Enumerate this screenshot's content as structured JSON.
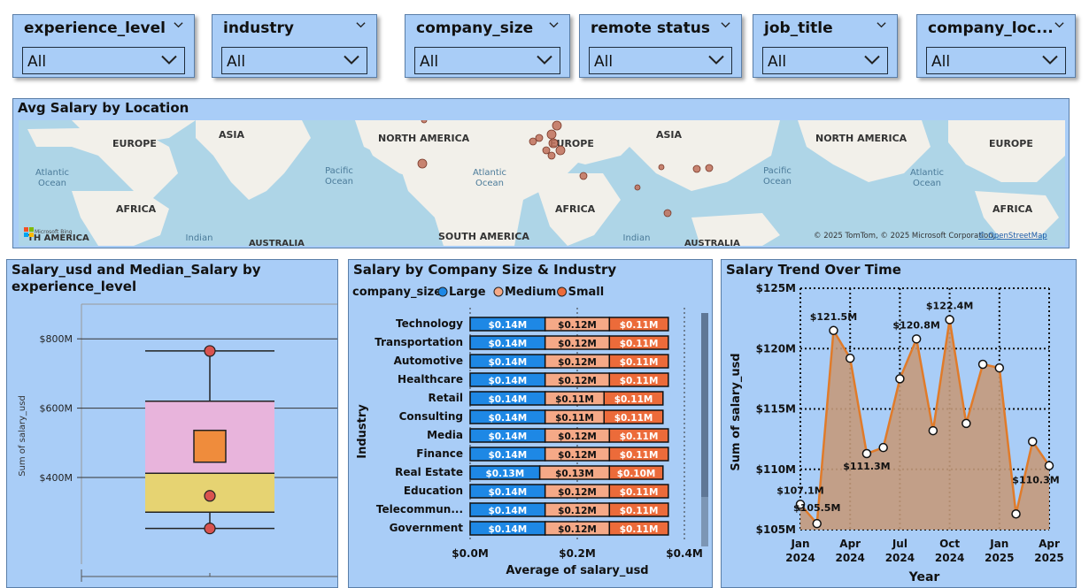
{
  "slicers": [
    {
      "title": "experience_level",
      "value": "All"
    },
    {
      "title": "industry",
      "value": "All"
    },
    {
      "title": "company_size",
      "value": "All"
    },
    {
      "title": "remote status",
      "value": "All"
    },
    {
      "title": "job_title",
      "value": "All"
    },
    {
      "title": "company_loc...",
      "value": "All"
    }
  ],
  "map": {
    "title": "Avg Salary by Location",
    "labels": {
      "europe": "EUROPE",
      "asia": "ASIA",
      "north_america": "NORTH AMERICA",
      "atlantic": "Atlantic",
      "ocean": "Ocean",
      "pacific": "Pacific",
      "africa": "AFRICA",
      "south_america": "SOUTH AMERICA",
      "indian": "Indian",
      "australia": "AUSTRALIA",
      "america_frag": "TH AMERICA"
    },
    "attribution": "© 2025 TomTom, © 2025 Microsoft Corporation,",
    "osm": "© OpenStreetMap",
    "logo": "Microsoft Bing"
  },
  "chart_data": [
    {
      "type": "box",
      "title": "Salary_usd and Median_Salary by experience_level",
      "ylabel": "Sum of salary_usd",
      "ylim": [
        150,
        900
      ],
      "ticks": [
        "$400M",
        "$600M",
        "$800M"
      ],
      "whisker_low": 253,
      "q1": 300,
      "median": 412,
      "q3": 620,
      "whisker_high": 765,
      "points": [
        765,
        347,
        253
      ],
      "mean": 490
    },
    {
      "type": "bar",
      "title": "Salary by Company Size & Industry",
      "legend_title": "company_size",
      "series_names": [
        "Large",
        "Medium",
        "Small"
      ],
      "colors": [
        "#1e88e5",
        "#f5a987",
        "#ec6b3a"
      ],
      "ylabel": "Industry",
      "xlabel": "Average of salary_usd",
      "xticks": [
        "$0.0M",
        "$0.2M",
        "$0.4M"
      ],
      "xlim": [
        0,
        0.4
      ],
      "categories": [
        "Technology",
        "Transportation",
        "Automotive",
        "Healthcare",
        "Retail",
        "Consulting",
        "Media",
        "Finance",
        "Real Estate",
        "Education",
        "Telecommun...",
        "Government"
      ],
      "series": [
        {
          "name": "Large",
          "values": [
            0.14,
            0.14,
            0.14,
            0.14,
            0.14,
            0.14,
            0.14,
            0.14,
            0.13,
            0.14,
            0.14,
            0.14
          ],
          "labels": [
            "$0.14M",
            "$0.14M",
            "$0.14M",
            "$0.14M",
            "$0.14M",
            "$0.14M",
            "$0.14M",
            "$0.14M",
            "$0.13M",
            "$0.14M",
            "$0.14M",
            "$0.14M"
          ]
        },
        {
          "name": "Medium",
          "values": [
            0.12,
            0.12,
            0.12,
            0.12,
            0.11,
            0.11,
            0.12,
            0.12,
            0.13,
            0.12,
            0.12,
            0.12
          ],
          "labels": [
            "$0.12M",
            "$0.12M",
            "$0.12M",
            "$0.12M",
            "$0.11M",
            "$0.11M",
            "$0.12M",
            "$0.12M",
            "$0.13M",
            "$0.12M",
            "$0.12M",
            "$0.12M"
          ]
        },
        {
          "name": "Small",
          "values": [
            0.11,
            0.11,
            0.11,
            0.11,
            0.11,
            0.11,
            0.11,
            0.11,
            0.1,
            0.11,
            0.11,
            0.11
          ],
          "labels": [
            "$0.11M",
            "$0.11M",
            "$0.11M",
            "$0.11M",
            "$0.11M",
            "$0.11M",
            "$0.11M",
            "$0.11M",
            "$0.10M",
            "$0.11M",
            "$0.11M",
            "$0.11M"
          ]
        }
      ]
    },
    {
      "type": "area",
      "title": "Salary Trend Over Time",
      "ylabel": "Sum of salary_usd",
      "xlabel": "Year",
      "ylim": [
        105,
        125
      ],
      "yticks": [
        "$105M",
        "$110M",
        "$115M",
        "$120M",
        "$125M"
      ],
      "ytick_values": [
        105,
        110,
        115,
        120,
        125
      ],
      "xticks": [
        {
          "line1": "Jan",
          "line2": "2024",
          "index": 0
        },
        {
          "line1": "Apr",
          "line2": "2024",
          "index": 3
        },
        {
          "line1": "Jul",
          "line2": "2024",
          "index": 6
        },
        {
          "line1": "Oct",
          "line2": "2024",
          "index": 9
        },
        {
          "line1": "Jan",
          "line2": "2025",
          "index": 12
        },
        {
          "line1": "Apr",
          "line2": "2025",
          "index": 15
        }
      ],
      "values": [
        107.1,
        105.5,
        121.5,
        119.2,
        111.3,
        111.8,
        117.5,
        120.8,
        113.2,
        122.4,
        113.8,
        118.7,
        118.4,
        106.3,
        112.3,
        110.3
      ],
      "data_labels": [
        {
          "index": 0,
          "text": "$107.1M"
        },
        {
          "index": 1,
          "text": "$105.5M"
        },
        {
          "index": 2,
          "text": "$121.5M"
        },
        {
          "index": 4,
          "text": "$111.3M"
        },
        {
          "index": 7,
          "text": "$120.8M"
        },
        {
          "index": 9,
          "text": "$122.4M"
        },
        {
          "index": 15,
          "text": "$110.3M"
        }
      ]
    }
  ],
  "colors": {
    "panel": "#a9cdf7",
    "area_fill": "#c49a7b",
    "line": "#e07b2a",
    "box_upper": "#e8b4dc",
    "box_lower": "#e6d372",
    "median_marker": "#ef8c3c",
    "dot": "#d9534f"
  }
}
